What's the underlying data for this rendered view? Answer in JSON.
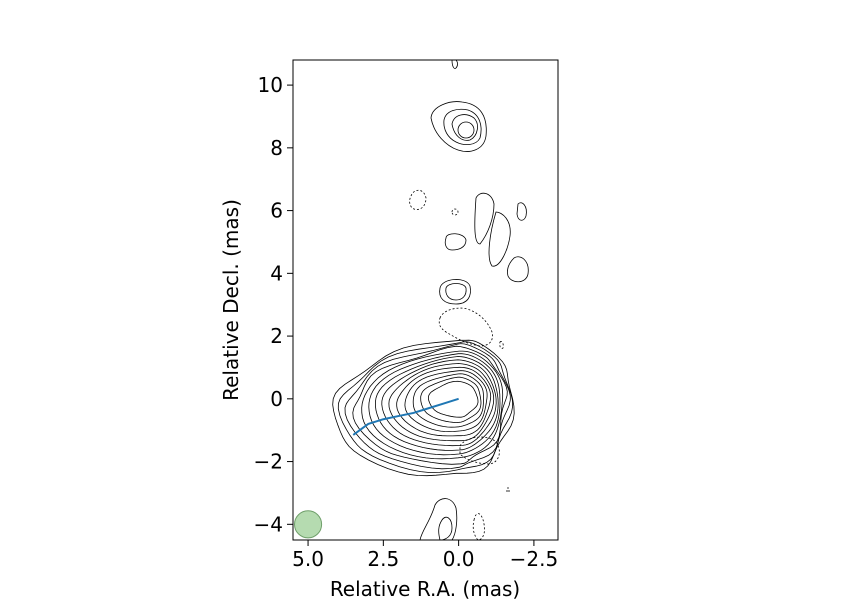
{
  "chart_data": {
    "type": "contour",
    "xlabel": "Relative R.A. (mas)",
    "ylabel": "Relative Decl. (mas)",
    "xlim": [
      5.5,
      -3.3
    ],
    "ylim": [
      -4.5,
      10.8
    ],
    "x_ticks": [
      5.0,
      2.5,
      0.0,
      -2.5
    ],
    "y_ticks": [
      -4,
      -2,
      0,
      2,
      4,
      6,
      8,
      10
    ],
    "x_tick_labels": [
      "5.0",
      "2.5",
      "0.0",
      "−2.5"
    ],
    "y_tick_labels": [
      "−4",
      "−2",
      "0",
      "2",
      "4",
      "6",
      "8",
      "10"
    ],
    "grid": false,
    "jet_ridge_line": {
      "color": "#1f77b4",
      "x": [
        0.0,
        0.5,
        1.0,
        1.5,
        2.0,
        2.5,
        3.0,
        3.5
      ],
      "y": [
        0.0,
        -0.15,
        -0.3,
        -0.45,
        -0.55,
        -0.65,
        -0.8,
        -1.15
      ]
    },
    "core_contours": {
      "center": [
        0.0,
        0.0
      ],
      "levels": 14
    },
    "beam": {
      "x": 5.0,
      "y": -4.0,
      "radius": 0.45,
      "color": "#a8d5a2"
    }
  }
}
